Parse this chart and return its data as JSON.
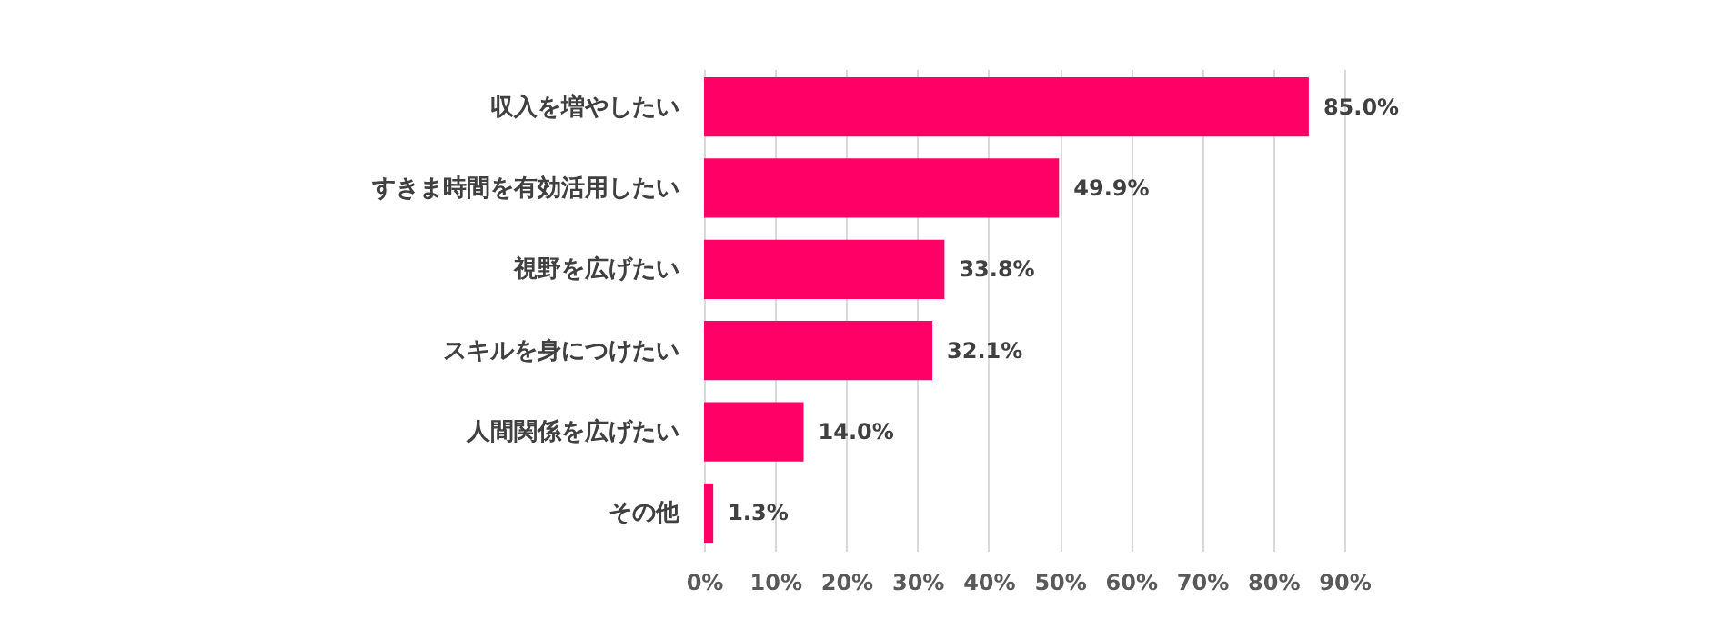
{
  "chart_data": {
    "type": "bar",
    "orientation": "horizontal",
    "categories": [
      "収入を増やしたい",
      "すきま時間を有効活用したい",
      "視野を広げたい",
      "スキルを身につけたい",
      "人間関係を広げたい",
      "その他"
    ],
    "values": [
      85.0,
      49.9,
      33.8,
      32.1,
      14.0,
      1.3
    ],
    "value_labels": [
      "85.0%",
      "49.9%",
      "33.8%",
      "32.1%",
      "14.0%",
      "1.3%"
    ],
    "color": "#ff0066",
    "xlim": [
      0,
      90
    ],
    "xticks": [
      {
        "value": 0,
        "label": "0%"
      },
      {
        "value": 10,
        "label": "10%"
      },
      {
        "value": 20,
        "label": "20%"
      },
      {
        "value": 30,
        "label": "30%"
      },
      {
        "value": 40,
        "label": "40%"
      },
      {
        "value": 50,
        "label": "50%"
      },
      {
        "value": 60,
        "label": "60%"
      },
      {
        "value": 70,
        "label": "70%"
      },
      {
        "value": 80,
        "label": "80%"
      },
      {
        "value": 90,
        "label": "90%"
      }
    ],
    "grid": "x"
  }
}
